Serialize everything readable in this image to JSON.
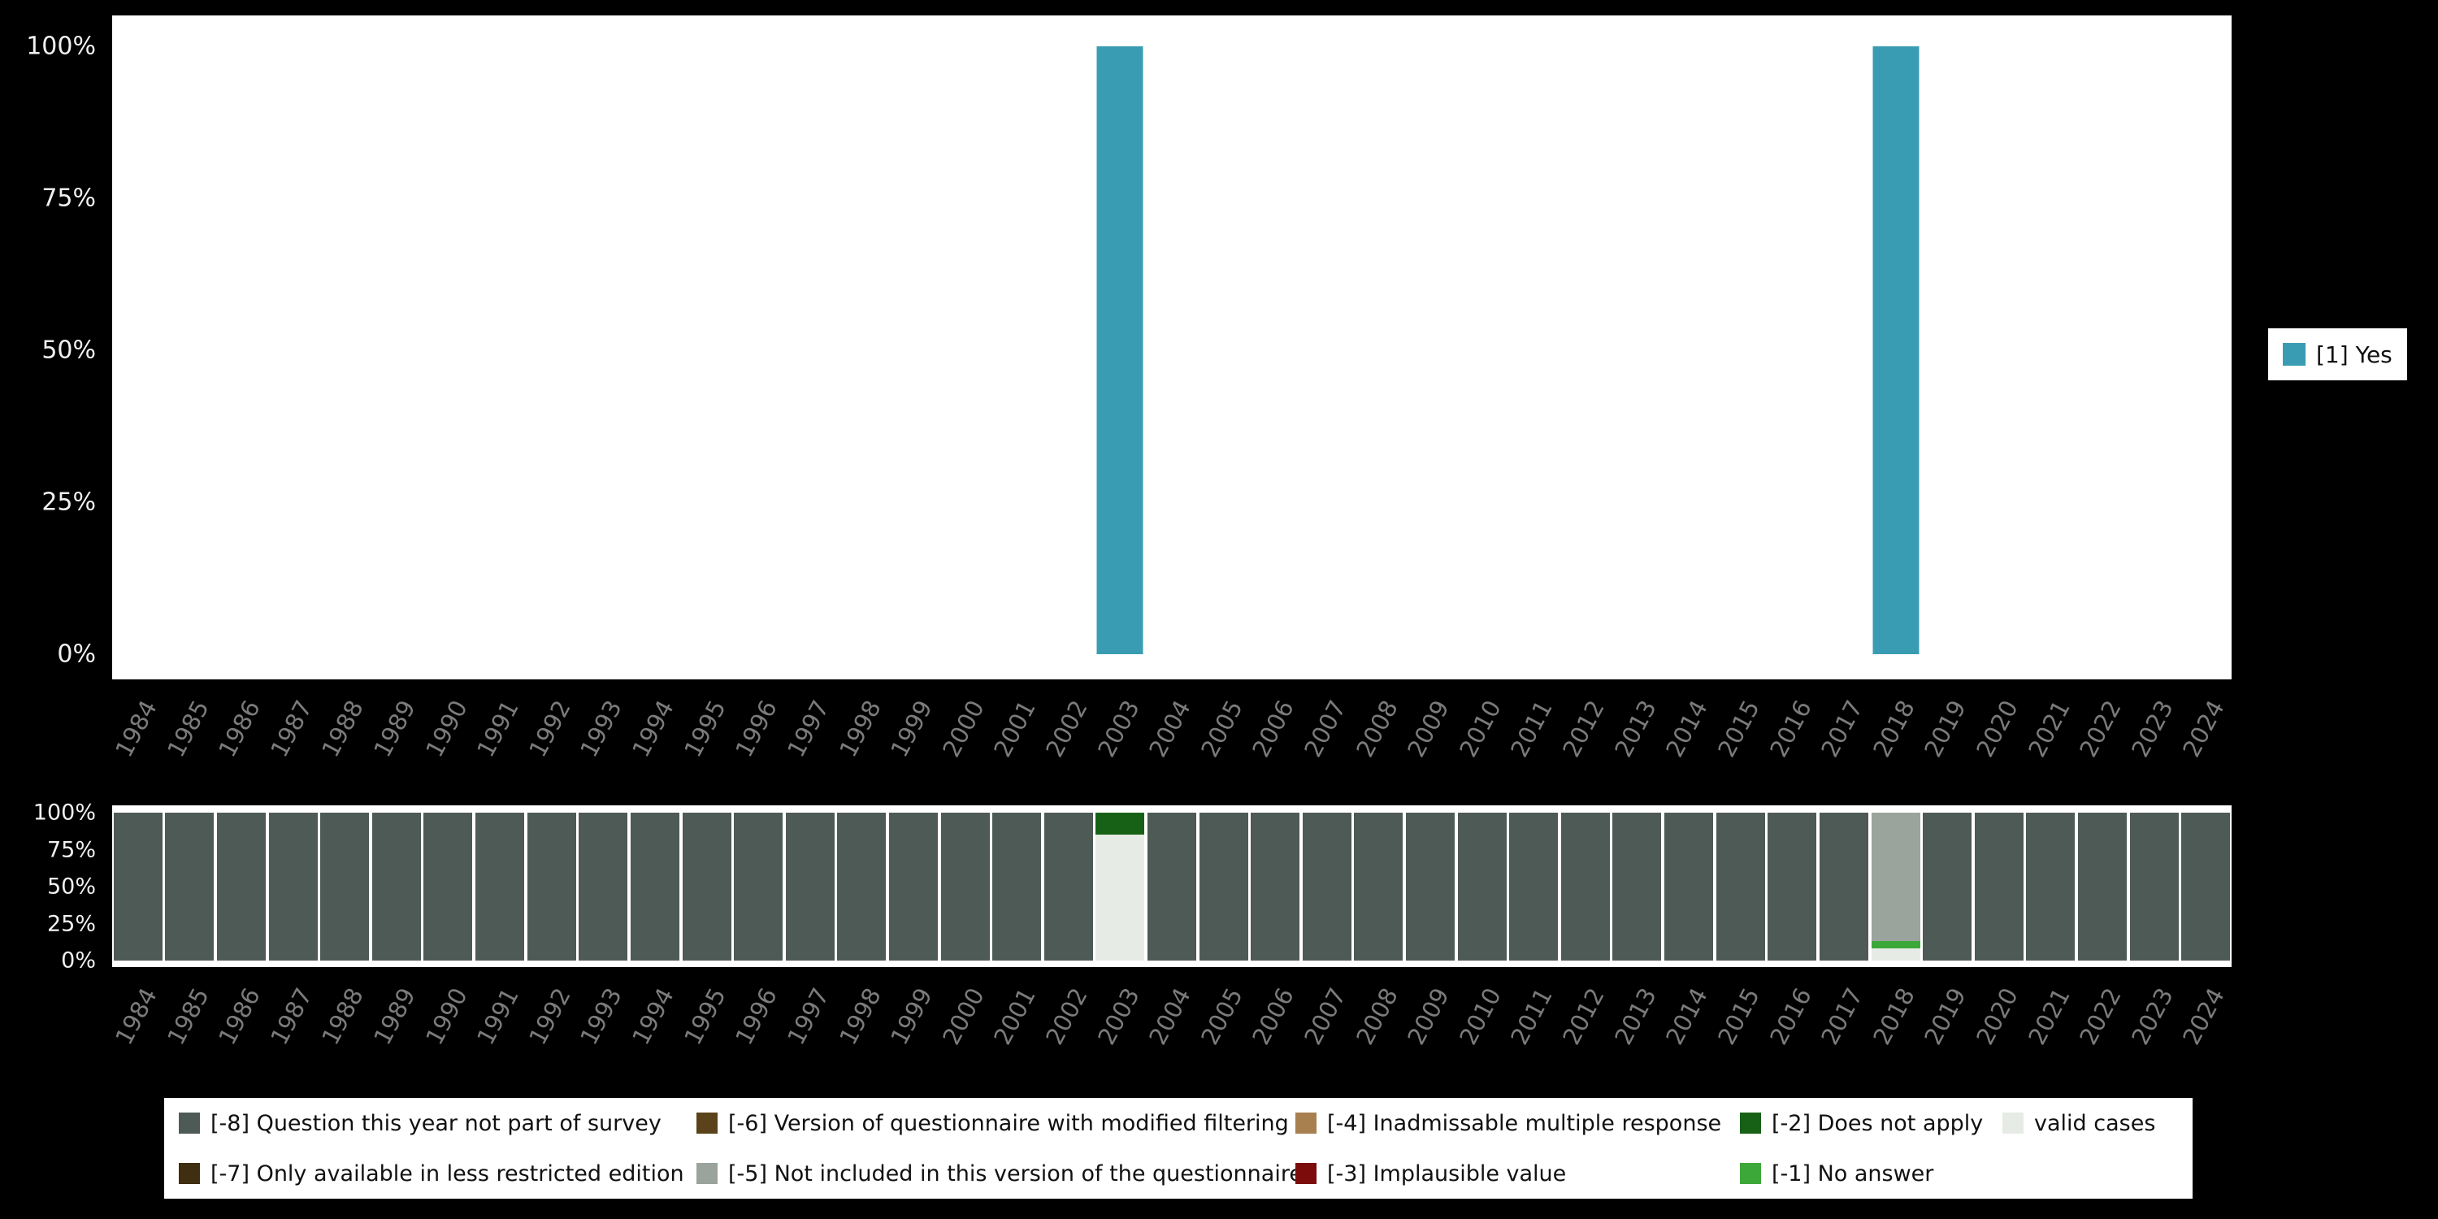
{
  "colors": {
    "background": "#000000",
    "plot_background": "#ffffff",
    "y_axis_text": "#f0f0f0",
    "x_axis_text": "#7b7b7b",
    "legend_background": "#ffffff",
    "legend_text": "#111111"
  },
  "chart_data": [
    {
      "type": "bar",
      "title": "",
      "xlabel": "",
      "ylabel": "",
      "ylim": [
        0,
        100
      ],
      "grid": false,
      "x": [
        "1984",
        "1985",
        "1986",
        "1987",
        "1988",
        "1989",
        "1990",
        "1991",
        "1992",
        "1993",
        "1994",
        "1995",
        "1996",
        "1997",
        "1998",
        "1999",
        "2000",
        "2001",
        "2002",
        "2003",
        "2004",
        "2005",
        "2006",
        "2007",
        "2008",
        "2009",
        "2010",
        "2011",
        "2012",
        "2013",
        "2014",
        "2015",
        "2016",
        "2017",
        "2018",
        "2019",
        "2020",
        "2021",
        "2022",
        "2023",
        "2024"
      ],
      "yticks": [
        {
          "label": "0%",
          "value": 0
        },
        {
          "label": "25%",
          "value": 25
        },
        {
          "label": "50%",
          "value": 50
        },
        {
          "label": "75%",
          "value": 75
        },
        {
          "label": "100%",
          "value": 100
        }
      ],
      "series": [
        {
          "name": "[1] Yes",
          "color": "#3a9cb3",
          "values": [
            0,
            0,
            0,
            0,
            0,
            0,
            0,
            0,
            0,
            0,
            0,
            0,
            0,
            0,
            0,
            0,
            0,
            0,
            0,
            100,
            0,
            0,
            0,
            0,
            0,
            0,
            0,
            0,
            0,
            0,
            0,
            0,
            0,
            0,
            100,
            0,
            0,
            0,
            0,
            0,
            0
          ]
        }
      ],
      "legend": {
        "position": "right",
        "entries": [
          {
            "label": "[1] Yes",
            "color": "#3a9cb3"
          }
        ]
      }
    },
    {
      "type": "bar-stacked",
      "title": "",
      "xlabel": "",
      "ylabel": "",
      "ylim": [
        0,
        100
      ],
      "grid": false,
      "x": [
        "1984",
        "1985",
        "1986",
        "1987",
        "1988",
        "1989",
        "1990",
        "1991",
        "1992",
        "1993",
        "1994",
        "1995",
        "1996",
        "1997",
        "1998",
        "1999",
        "2000",
        "2001",
        "2002",
        "2003",
        "2004",
        "2005",
        "2006",
        "2007",
        "2008",
        "2009",
        "2010",
        "2011",
        "2012",
        "2013",
        "2014",
        "2015",
        "2016",
        "2017",
        "2018",
        "2019",
        "2020",
        "2021",
        "2022",
        "2023",
        "2024"
      ],
      "yticks": [
        {
          "label": "0%",
          "value": 0
        },
        {
          "label": "25%",
          "value": 25
        },
        {
          "label": "50%",
          "value": 50
        },
        {
          "label": "75%",
          "value": 75
        },
        {
          "label": "100%",
          "value": 100
        }
      ],
      "series": [
        {
          "name": "[-8] Question this year not part of survey",
          "color": "#4e5a55",
          "values": [
            100,
            100,
            100,
            100,
            100,
            100,
            100,
            100,
            100,
            100,
            100,
            100,
            100,
            100,
            100,
            100,
            100,
            100,
            100,
            0,
            100,
            100,
            100,
            100,
            100,
            100,
            100,
            100,
            100,
            100,
            100,
            100,
            100,
            100,
            0,
            100,
            100,
            100,
            100,
            100,
            100
          ]
        },
        {
          "name": "[-7] Only available in less restricted edition",
          "color": "#3f2e10",
          "values": [
            0,
            0,
            0,
            0,
            0,
            0,
            0,
            0,
            0,
            0,
            0,
            0,
            0,
            0,
            0,
            0,
            0,
            0,
            0,
            0,
            0,
            0,
            0,
            0,
            0,
            0,
            0,
            0,
            0,
            0,
            0,
            0,
            0,
            0,
            0,
            0,
            0,
            0,
            0,
            0,
            0
          ]
        },
        {
          "name": "[-6] Version of questionnaire with modified filtering",
          "color": "#5a431a",
          "values": [
            0,
            0,
            0,
            0,
            0,
            0,
            0,
            0,
            0,
            0,
            0,
            0,
            0,
            0,
            0,
            0,
            0,
            0,
            0,
            0,
            0,
            0,
            0,
            0,
            0,
            0,
            0,
            0,
            0,
            0,
            0,
            0,
            0,
            0,
            0,
            0,
            0,
            0,
            0,
            0,
            0
          ]
        },
        {
          "name": "[-5] Not included in this version of the questionnaire",
          "color": "#9aa49c",
          "values": [
            0,
            0,
            0,
            0,
            0,
            0,
            0,
            0,
            0,
            0,
            0,
            0,
            0,
            0,
            0,
            0,
            0,
            0,
            0,
            0,
            0,
            0,
            0,
            0,
            0,
            0,
            0,
            0,
            0,
            0,
            0,
            0,
            0,
            0,
            87,
            0,
            0,
            0,
            0,
            0,
            0
          ]
        },
        {
          "name": "[-4] Inadmissable multiple response",
          "color": "#a87f4f",
          "values": [
            0,
            0,
            0,
            0,
            0,
            0,
            0,
            0,
            0,
            0,
            0,
            0,
            0,
            0,
            0,
            0,
            0,
            0,
            0,
            0,
            0,
            0,
            0,
            0,
            0,
            0,
            0,
            0,
            0,
            0,
            0,
            0,
            0,
            0,
            0,
            0,
            0,
            0,
            0,
            0,
            0
          ]
        },
        {
          "name": "[-3] Implausible value",
          "color": "#7c0c0c",
          "values": [
            0,
            0,
            0,
            0,
            0,
            0,
            0,
            0,
            0,
            0,
            0,
            0,
            0,
            0,
            0,
            0,
            0,
            0,
            0,
            0,
            0,
            0,
            0,
            0,
            0,
            0,
            0,
            0,
            0,
            0,
            0,
            0,
            0,
            0,
            0,
            0,
            0,
            0,
            0,
            0,
            0
          ]
        },
        {
          "name": "[-2] Does not apply",
          "color": "#176117",
          "values": [
            0,
            0,
            0,
            0,
            0,
            0,
            0,
            0,
            0,
            0,
            0,
            0,
            0,
            0,
            0,
            0,
            0,
            0,
            0,
            15,
            0,
            0,
            0,
            0,
            0,
            0,
            0,
            0,
            0,
            0,
            0,
            0,
            0,
            0,
            0,
            0,
            0,
            0,
            0,
            0,
            0
          ]
        },
        {
          "name": "[-1] No answer",
          "color": "#3da83a",
          "values": [
            0,
            0,
            0,
            0,
            0,
            0,
            0,
            0,
            0,
            0,
            0,
            0,
            0,
            0,
            0,
            0,
            0,
            0,
            0,
            0,
            0,
            0,
            0,
            0,
            0,
            0,
            0,
            0,
            0,
            0,
            0,
            0,
            0,
            0,
            5,
            0,
            0,
            0,
            0,
            0,
            0
          ]
        },
        {
          "name": "valid cases",
          "color": "#e7ebe5",
          "values": [
            0,
            0,
            0,
            0,
            0,
            0,
            0,
            0,
            0,
            0,
            0,
            0,
            0,
            0,
            0,
            0,
            0,
            0,
            0,
            85,
            0,
            0,
            0,
            0,
            0,
            0,
            0,
            0,
            0,
            0,
            0,
            0,
            0,
            0,
            8,
            0,
            0,
            0,
            0,
            0,
            0
          ]
        }
      ],
      "legend": {
        "position": "bottom",
        "rows": 2,
        "order": "column-major"
      }
    }
  ]
}
